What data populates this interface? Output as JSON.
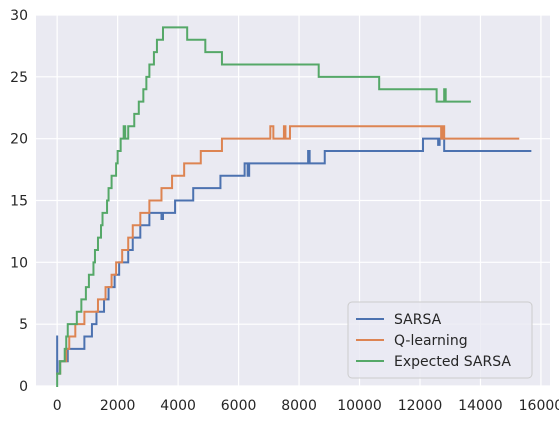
{
  "chart_data": {
    "type": "line",
    "style": "seaborn-darkgrid",
    "title": "",
    "xlabel": "",
    "ylabel": "",
    "xlim": [
      -700,
      16300
    ],
    "ylim": [
      0,
      30
    ],
    "xticks": [
      0,
      2000,
      4000,
      6000,
      8000,
      10000,
      12000,
      14000,
      16000
    ],
    "xtick_labels": [
      "0",
      "2000",
      "4000",
      "6000",
      "8000",
      "10000",
      "12000",
      "14000",
      "16000"
    ],
    "yticks": [
      0,
      5,
      10,
      15,
      20,
      25,
      30
    ],
    "ytick_labels": [
      "0",
      "5",
      "10",
      "15",
      "20",
      "25",
      "30"
    ],
    "grid": true,
    "legend_position": "lower-right",
    "series": [
      {
        "name": "SARSA",
        "color": "#4c72b0",
        "points": [
          [
            0,
            4
          ],
          [
            0,
            1
          ],
          [
            80,
            1
          ],
          [
            80,
            2
          ],
          [
            350,
            2
          ],
          [
            350,
            3
          ],
          [
            900,
            3
          ],
          [
            900,
            4
          ],
          [
            1150,
            4
          ],
          [
            1150,
            5
          ],
          [
            1300,
            5
          ],
          [
            1300,
            6
          ],
          [
            1550,
            6
          ],
          [
            1550,
            7
          ],
          [
            1700,
            7
          ],
          [
            1700,
            8
          ],
          [
            1900,
            8
          ],
          [
            1900,
            9
          ],
          [
            2050,
            9
          ],
          [
            2050,
            10
          ],
          [
            2350,
            10
          ],
          [
            2350,
            11
          ],
          [
            2500,
            11
          ],
          [
            2500,
            12
          ],
          [
            2750,
            12
          ],
          [
            2750,
            13
          ],
          [
            3050,
            13
          ],
          [
            3050,
            14
          ],
          [
            3450,
            14
          ],
          [
            3450,
            13.5
          ],
          [
            3500,
            13.5
          ],
          [
            3500,
            14
          ],
          [
            3900,
            14
          ],
          [
            3900,
            15
          ],
          [
            4500,
            15
          ],
          [
            4500,
            16
          ],
          [
            5400,
            16
          ],
          [
            5400,
            17
          ],
          [
            6200,
            17
          ],
          [
            6200,
            18
          ],
          [
            6300,
            18
          ],
          [
            6300,
            17
          ],
          [
            6350,
            17
          ],
          [
            6350,
            18
          ],
          [
            8300,
            18
          ],
          [
            8300,
            19
          ],
          [
            8350,
            19
          ],
          [
            8350,
            18
          ],
          [
            8850,
            18
          ],
          [
            8850,
            19
          ],
          [
            12100,
            19
          ],
          [
            12100,
            20
          ],
          [
            12600,
            20
          ],
          [
            12600,
            19.5
          ],
          [
            12650,
            19.5
          ],
          [
            12650,
            20
          ],
          [
            12800,
            20
          ],
          [
            12800,
            19
          ],
          [
            15650,
            19
          ]
        ]
      },
      {
        "name": "Q-learning",
        "color": "#dd8452",
        "points": [
          [
            0,
            1
          ],
          [
            100,
            1
          ],
          [
            100,
            2
          ],
          [
            300,
            2
          ],
          [
            300,
            3
          ],
          [
            400,
            3
          ],
          [
            400,
            4
          ],
          [
            600,
            4
          ],
          [
            600,
            5
          ],
          [
            900,
            5
          ],
          [
            900,
            6
          ],
          [
            1350,
            6
          ],
          [
            1350,
            7
          ],
          [
            1600,
            7
          ],
          [
            1600,
            8
          ],
          [
            1800,
            8
          ],
          [
            1800,
            9
          ],
          [
            1950,
            9
          ],
          [
            1950,
            10
          ],
          [
            2150,
            10
          ],
          [
            2150,
            11
          ],
          [
            2350,
            11
          ],
          [
            2350,
            12
          ],
          [
            2500,
            12
          ],
          [
            2500,
            13
          ],
          [
            2750,
            13
          ],
          [
            2750,
            14
          ],
          [
            3050,
            14
          ],
          [
            3050,
            15
          ],
          [
            3450,
            15
          ],
          [
            3450,
            16
          ],
          [
            3800,
            16
          ],
          [
            3800,
            17
          ],
          [
            4200,
            17
          ],
          [
            4200,
            18
          ],
          [
            4750,
            18
          ],
          [
            4750,
            19
          ],
          [
            5450,
            19
          ],
          [
            5450,
            20
          ],
          [
            7050,
            20
          ],
          [
            7050,
            21
          ],
          [
            7150,
            21
          ],
          [
            7150,
            20
          ],
          [
            7500,
            20
          ],
          [
            7500,
            21
          ],
          [
            7550,
            21
          ],
          [
            7550,
            20
          ],
          [
            7700,
            20
          ],
          [
            7700,
            21
          ],
          [
            12700,
            21
          ],
          [
            12700,
            20
          ],
          [
            12750,
            20
          ],
          [
            12750,
            21
          ],
          [
            12800,
            21
          ],
          [
            12800,
            20
          ],
          [
            15250,
            20
          ]
        ]
      },
      {
        "name": "Expected SARSA",
        "color": "#55a868",
        "points": [
          [
            0,
            0
          ],
          [
            0,
            1
          ],
          [
            100,
            1
          ],
          [
            100,
            2
          ],
          [
            250,
            2
          ],
          [
            250,
            3
          ],
          [
            300,
            3
          ],
          [
            300,
            4
          ],
          [
            350,
            4
          ],
          [
            350,
            5
          ],
          [
            650,
            5
          ],
          [
            650,
            6
          ],
          [
            800,
            6
          ],
          [
            800,
            7
          ],
          [
            950,
            7
          ],
          [
            950,
            8
          ],
          [
            1050,
            8
          ],
          [
            1050,
            9
          ],
          [
            1200,
            9
          ],
          [
            1200,
            10
          ],
          [
            1250,
            10
          ],
          [
            1250,
            11
          ],
          [
            1350,
            11
          ],
          [
            1350,
            12
          ],
          [
            1450,
            12
          ],
          [
            1450,
            13
          ],
          [
            1500,
            13
          ],
          [
            1500,
            14
          ],
          [
            1650,
            14
          ],
          [
            1650,
            15
          ],
          [
            1700,
            15
          ],
          [
            1700,
            16
          ],
          [
            1800,
            16
          ],
          [
            1800,
            17
          ],
          [
            1950,
            17
          ],
          [
            1950,
            18
          ],
          [
            2000,
            18
          ],
          [
            2000,
            19
          ],
          [
            2100,
            19
          ],
          [
            2100,
            20
          ],
          [
            2200,
            20
          ],
          [
            2200,
            21
          ],
          [
            2250,
            21
          ],
          [
            2250,
            20
          ],
          [
            2350,
            20
          ],
          [
            2350,
            21
          ],
          [
            2550,
            21
          ],
          [
            2550,
            22
          ],
          [
            2700,
            22
          ],
          [
            2700,
            23
          ],
          [
            2850,
            23
          ],
          [
            2850,
            24
          ],
          [
            2950,
            24
          ],
          [
            2950,
            25
          ],
          [
            3050,
            25
          ],
          [
            3050,
            26
          ],
          [
            3200,
            26
          ],
          [
            3200,
            27
          ],
          [
            3300,
            27
          ],
          [
            3300,
            28
          ],
          [
            3500,
            28
          ],
          [
            3500,
            29
          ],
          [
            4300,
            29
          ],
          [
            4300,
            28
          ],
          [
            4900,
            28
          ],
          [
            4900,
            27
          ],
          [
            5450,
            27
          ],
          [
            5450,
            26
          ],
          [
            8650,
            26
          ],
          [
            8650,
            25
          ],
          [
            10650,
            25
          ],
          [
            10650,
            24
          ],
          [
            12550,
            24
          ],
          [
            12550,
            23
          ],
          [
            12800,
            23
          ],
          [
            12800,
            24
          ],
          [
            12850,
            24
          ],
          [
            12850,
            23
          ],
          [
            13650,
            23
          ]
        ]
      }
    ]
  }
}
